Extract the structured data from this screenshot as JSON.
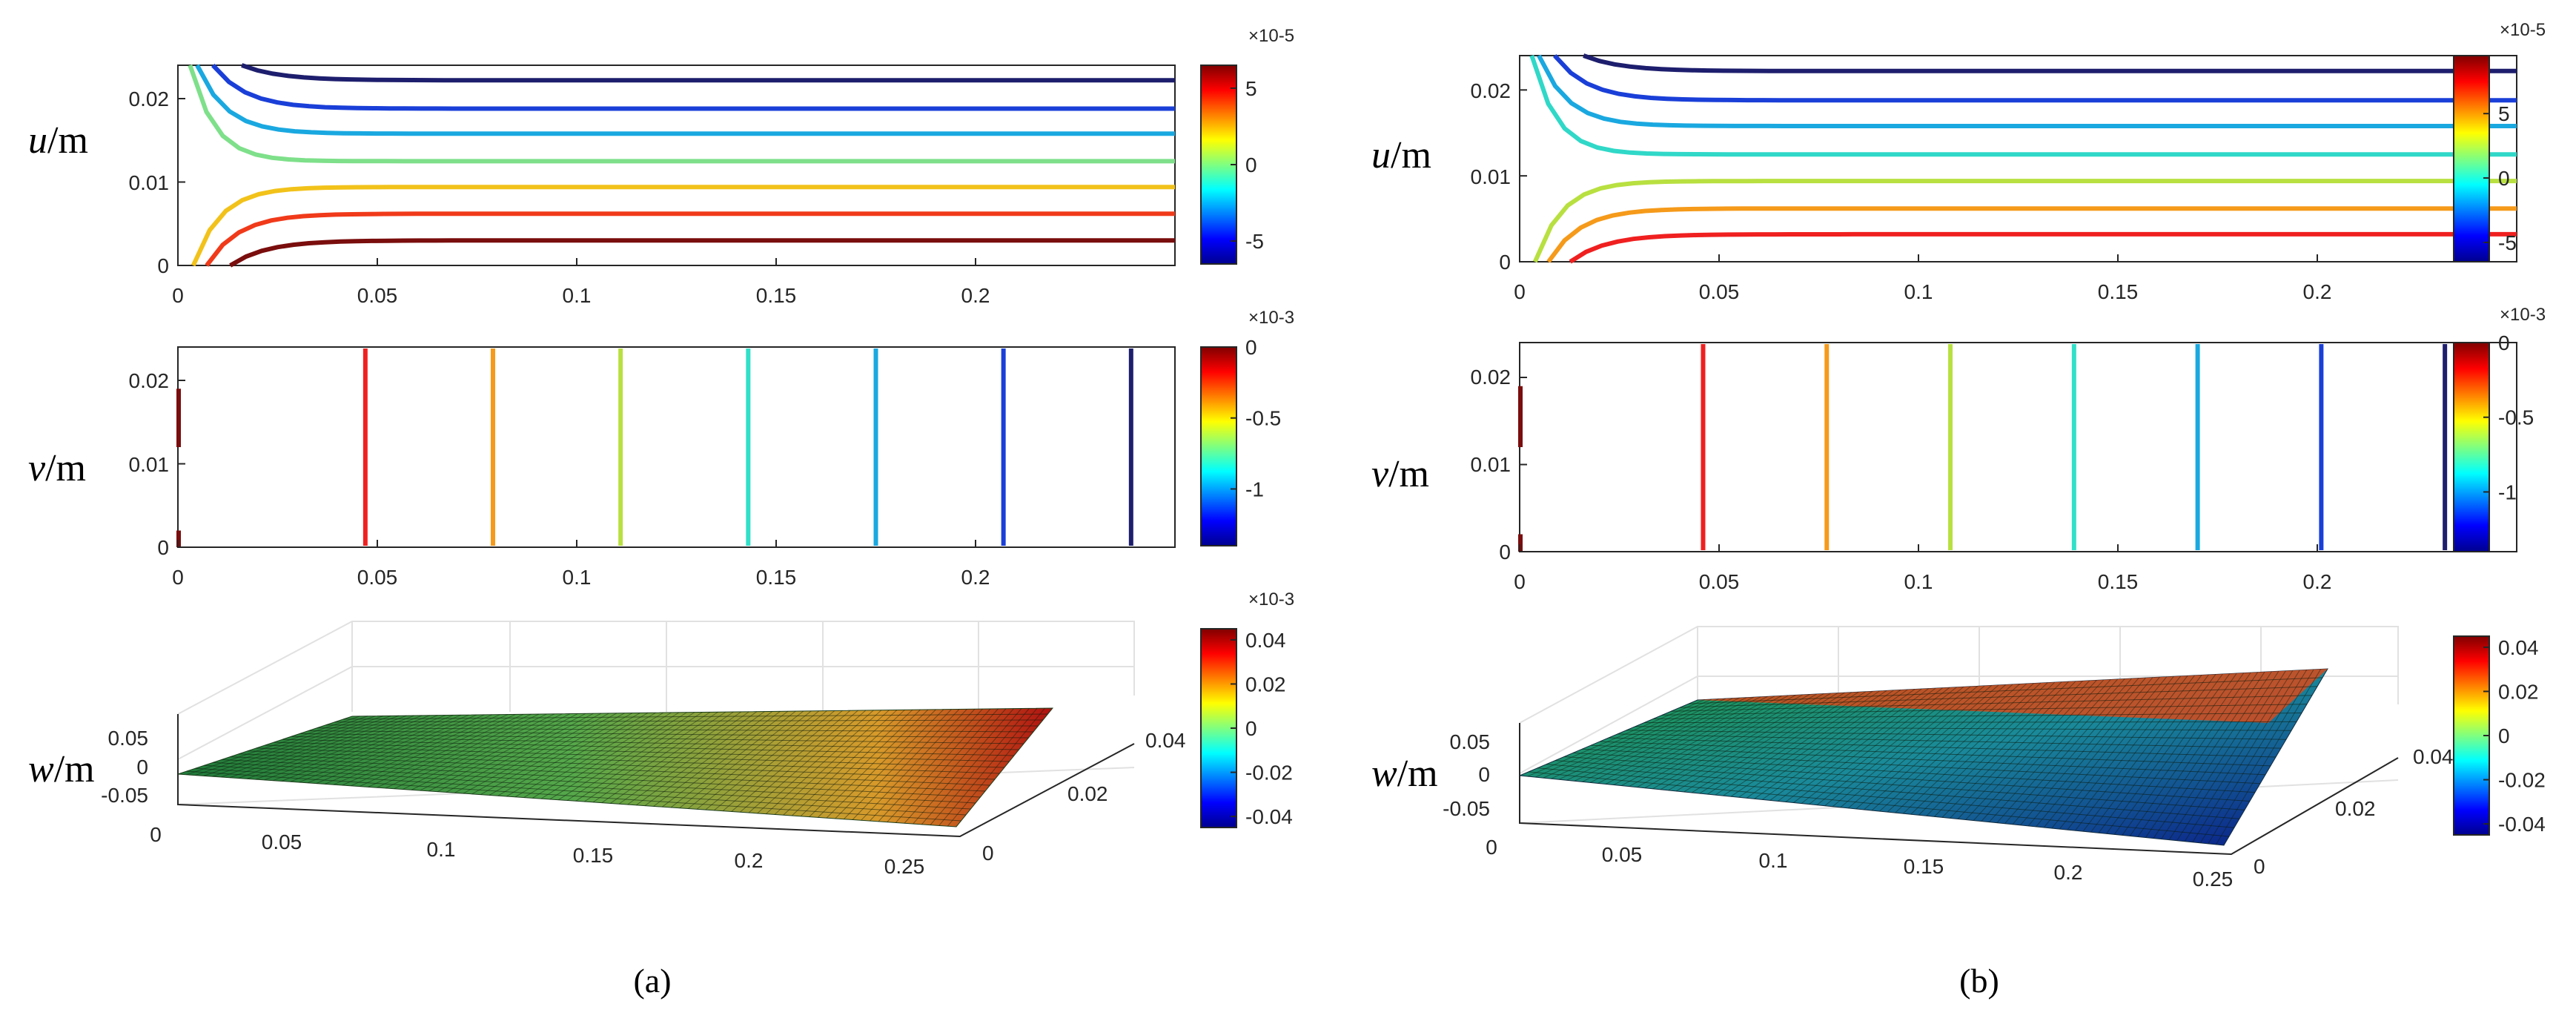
{
  "figure": {
    "captions": [
      "(a)",
      "(b)"
    ]
  },
  "chart_data": [
    {
      "id": "a-u",
      "type": "contour",
      "panel": "a",
      "variable": "u",
      "ylabel_var": "u",
      "ylabel_unit": "/m",
      "xlim": [
        0,
        0.25
      ],
      "ylim": [
        0,
        0.024
      ],
      "xticks": [
        "0",
        "0.05",
        "0.1",
        "0.15",
        "0.2"
      ],
      "yticks": [
        "0",
        "0.01",
        "0.02"
      ],
      "colorbar": {
        "exponent": "×10-5",
        "ticks": [
          "5",
          "0",
          "-5"
        ],
        "tick_values": [
          5,
          0,
          -5
        ],
        "range": [
          -6.5,
          6.5
        ]
      },
      "contours": [
        {
          "level": -6,
          "y_far": 0.0222,
          "color": "#1e1e6e"
        },
        {
          "level": -4,
          "y_far": 0.0188,
          "color": "#1a3fd8"
        },
        {
          "level": -2,
          "y_far": 0.0158,
          "color": "#1aa8e0"
        },
        {
          "level": 0,
          "y_far": 0.0125,
          "color": "#7ee08a"
        },
        {
          "level": 2,
          "y_far": 0.0094,
          "color": "#f2c21a"
        },
        {
          "level": 4,
          "y_far": 0.0062,
          "color": "#f03a1a"
        },
        {
          "level": 6,
          "y_far": 0.003,
          "color": "#7a0d0d"
        }
      ]
    },
    {
      "id": "a-v",
      "type": "contour",
      "panel": "a",
      "variable": "v",
      "ylabel_var": "v",
      "ylabel_unit": "/m",
      "xlim": [
        0,
        0.25
      ],
      "ylim": [
        0,
        0.024
      ],
      "xticks": [
        "0",
        "0.05",
        "0.1",
        "0.15",
        "0.2"
      ],
      "yticks": [
        "0",
        "0.01",
        "0.02"
      ],
      "colorbar": {
        "exponent": "×10-3",
        "ticks": [
          "0",
          "-0.5",
          "-1"
        ],
        "tick_values": [
          0,
          -0.5,
          -1
        ],
        "range": [
          -1.4,
          0
        ]
      },
      "contours": [
        {
          "x": 0.047,
          "color": "#f02020"
        },
        {
          "x": 0.079,
          "color": "#f59a1a"
        },
        {
          "x": 0.111,
          "color": "#b8e040"
        },
        {
          "x": 0.143,
          "color": "#30e0c8"
        },
        {
          "x": 0.175,
          "color": "#1aa8e0"
        },
        {
          "x": 0.207,
          "color": "#1a3fd8"
        },
        {
          "x": 0.239,
          "color": "#1e1e6e"
        }
      ]
    },
    {
      "id": "a-w",
      "type": "surface",
      "panel": "a",
      "variable": "w",
      "ylabel_var": "w",
      "ylabel_unit": "/m",
      "xlim": [
        0,
        0.25
      ],
      "ylim": [
        0,
        0.04
      ],
      "zlim": [
        -0.05,
        0.05
      ],
      "xticks": [
        "0",
        "0.05",
        "0.1",
        "0.15",
        "0.2",
        "0.25"
      ],
      "yticks": [
        "0",
        "0.02",
        "0.04"
      ],
      "zticks": [
        "0.05",
        "0",
        "-0.05"
      ],
      "colorbar": {
        "exponent": "",
        "ticks": [
          "0.04",
          "0.02",
          "0",
          "-0.02",
          "-0.04"
        ],
        "tick_values": [
          0.04,
          0.02,
          0,
          -0.02,
          -0.04
        ],
        "range": [
          -0.045,
          0.045
        ]
      }
    },
    {
      "id": "b-u",
      "type": "contour",
      "panel": "b",
      "variable": "u",
      "ylabel_var": "u",
      "ylabel_unit": "/m",
      "xlim": [
        0,
        0.25
      ],
      "ylim": [
        0,
        0.024
      ],
      "xticks": [
        "0",
        "0.05",
        "0.1",
        "0.15",
        "0.2"
      ],
      "yticks": [
        "0",
        "0.01",
        "0.02"
      ],
      "colorbar": {
        "exponent": "×10-5",
        "ticks": [
          "5",
          "0",
          "-5"
        ],
        "tick_values": [
          5,
          0,
          -5
        ],
        "range": [
          -6.5,
          9.5
        ]
      },
      "contours": [
        {
          "level": -6,
          "y_far": 0.0222,
          "color": "#1e1e6e"
        },
        {
          "level": -4,
          "y_far": 0.0188,
          "color": "#1a3fd8"
        },
        {
          "level": -2,
          "y_far": 0.0158,
          "color": "#1aa8e0"
        },
        {
          "level": 0,
          "y_far": 0.0125,
          "color": "#30d8c8"
        },
        {
          "level": 2,
          "y_far": 0.0094,
          "color": "#b8e040"
        },
        {
          "level": 4,
          "y_far": 0.0062,
          "color": "#f59a1a"
        },
        {
          "level": 6,
          "y_far": 0.0032,
          "color": "#f02020"
        }
      ]
    },
    {
      "id": "b-v",
      "type": "contour",
      "panel": "b",
      "variable": "v",
      "ylabel_var": "v",
      "ylabel_unit": "/m",
      "xlim": [
        0,
        0.25
      ],
      "ylim": [
        0,
        0.024
      ],
      "xticks": [
        "0",
        "0.05",
        "0.1",
        "0.15",
        "0.2"
      ],
      "yticks": [
        "0",
        "0.01",
        "0.02"
      ],
      "colorbar": {
        "exponent": "×10-3",
        "ticks": [
          "0",
          "-0.5",
          "-1"
        ],
        "tick_values": [
          0,
          -0.5,
          -1
        ],
        "range": [
          -1.4,
          0
        ]
      },
      "contours": [
        {
          "x": 0.046,
          "color": "#f02020"
        },
        {
          "x": 0.077,
          "color": "#f59a1a"
        },
        {
          "x": 0.108,
          "color": "#b8e040"
        },
        {
          "x": 0.139,
          "color": "#30e0c8"
        },
        {
          "x": 0.17,
          "color": "#1aa8e0"
        },
        {
          "x": 0.201,
          "color": "#1a3fd8"
        },
        {
          "x": 0.232,
          "color": "#1e1e6e"
        }
      ]
    },
    {
      "id": "b-w",
      "type": "surface",
      "panel": "b",
      "variable": "w",
      "ylabel_var": "w",
      "ylabel_unit": "/m",
      "xlim": [
        0,
        0.25
      ],
      "ylim": [
        0,
        0.04
      ],
      "zlim": [
        -0.05,
        0.05
      ],
      "xticks": [
        "0",
        "0.05",
        "0.1",
        "0.15",
        "0.2",
        "0.25"
      ],
      "yticks": [
        "0",
        "0.02",
        "0.04"
      ],
      "zticks": [
        "0.05",
        "0",
        "-0.05"
      ],
      "colorbar": {
        "exponent": "",
        "ticks": [
          "0.04",
          "0.02",
          "0",
          "-0.02",
          "-0.04"
        ],
        "tick_values": [
          0.04,
          0.02,
          0,
          -0.02,
          -0.04
        ],
        "range": [
          -0.045,
          0.045
        ]
      }
    }
  ]
}
